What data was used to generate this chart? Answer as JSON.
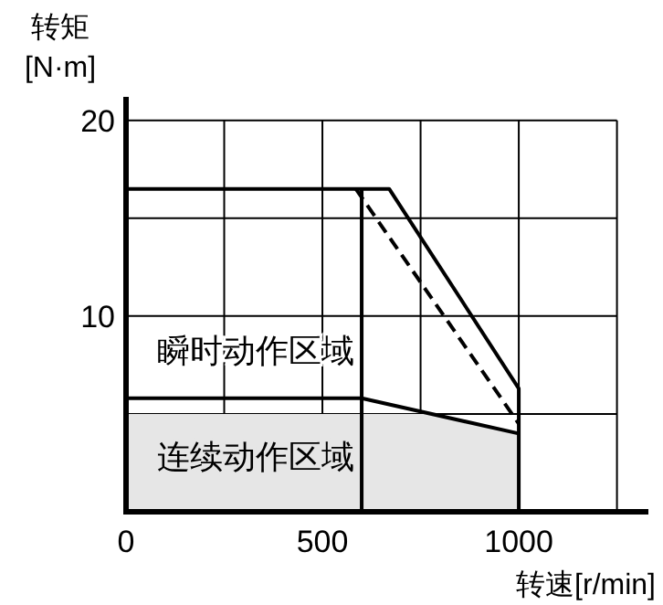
{
  "chart_data": {
    "type": "line",
    "xlabel": "转速[r/min]",
    "ylabel": "转矩 [N·m]",
    "xlim": [
      0,
      1330
    ],
    "ylim": [
      0,
      21.2
    ],
    "xticks": [
      0,
      {
        "value": 250,
        "label": null
      },
      500,
      {
        "value": 750,
        "label": null
      },
      1000,
      {
        "value": 1250,
        "label": null
      }
    ],
    "yticks": [
      {
        "value": 5,
        "label": null
      },
      10,
      {
        "value": 15,
        "label": null
      },
      20
    ],
    "grid": true,
    "series": [
      {
        "type": "area",
        "color": "#e6e6e6",
        "x": [
          0,
          771,
          1000
        ],
        "values": [
          5,
          5,
          4
        ]
      },
      {
        "color": "#000000",
        "x": [
          0,
          670,
          1000,
          1000
        ],
        "values": [
          16.5,
          16.5,
          6.3,
          0
        ]
      },
      {
        "color": "#000000",
        "line_style": "dashed",
        "x": [
          585,
          1000
        ],
        "values": [
          16.5,
          4.5
        ]
      },
      {
        "color": "#000000",
        "x": [
          0,
          600,
          1000
        ],
        "values": [
          5.8,
          5.8,
          4
        ]
      },
      {
        "color": "#000000",
        "x": [
          600,
          600
        ],
        "values": [
          0,
          16.5
        ]
      }
    ],
    "annotations": [
      "瞬时动作区域",
      "连续动作区域"
    ]
  }
}
